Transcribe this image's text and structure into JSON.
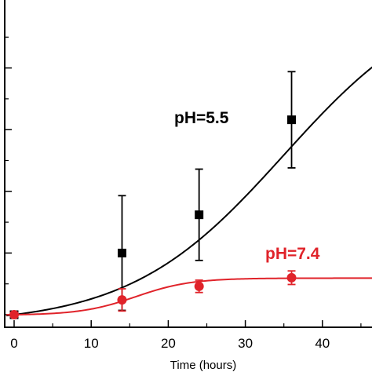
{
  "chart_data": {
    "type": "scatter",
    "xlabel": "Time (hours)",
    "ylabel": "",
    "xlim": [
      -1,
      47
    ],
    "ylim": [
      -0.05,
      5.0
    ],
    "x_ticks": [
      0,
      10,
      20,
      30,
      40
    ],
    "y_ticks": [
      0,
      1,
      2,
      3,
      4
    ],
    "grid": false,
    "series": [
      {
        "name": "pH=5.5",
        "color": "#000000",
        "marker": "square",
        "points": [
          {
            "x": 0,
            "y": 0,
            "err": 0.05
          },
          {
            "x": 14,
            "y": 1.0,
            "err": 0.93
          },
          {
            "x": 24,
            "y": 1.62,
            "err": 0.74
          },
          {
            "x": 36,
            "y": 3.16,
            "err": 0.78
          }
        ],
        "fit": {
          "model": "logistic",
          "L": 5.5,
          "k": 0.1,
          "x0": 35
        }
      },
      {
        "name": "pH=7.4",
        "color": "#e0232a",
        "marker": "circle",
        "points": [
          {
            "x": 0,
            "y": 0,
            "err": 0.05
          },
          {
            "x": 14,
            "y": 0.24,
            "err": 0.18
          },
          {
            "x": 24,
            "y": 0.46,
            "err": 0.1
          },
          {
            "x": 36,
            "y": 0.6,
            "err": 0.11
          }
        ],
        "fit": {
          "model": "logistic",
          "L": 0.6,
          "k": 0.28,
          "x0": 15.8
        }
      }
    ]
  }
}
